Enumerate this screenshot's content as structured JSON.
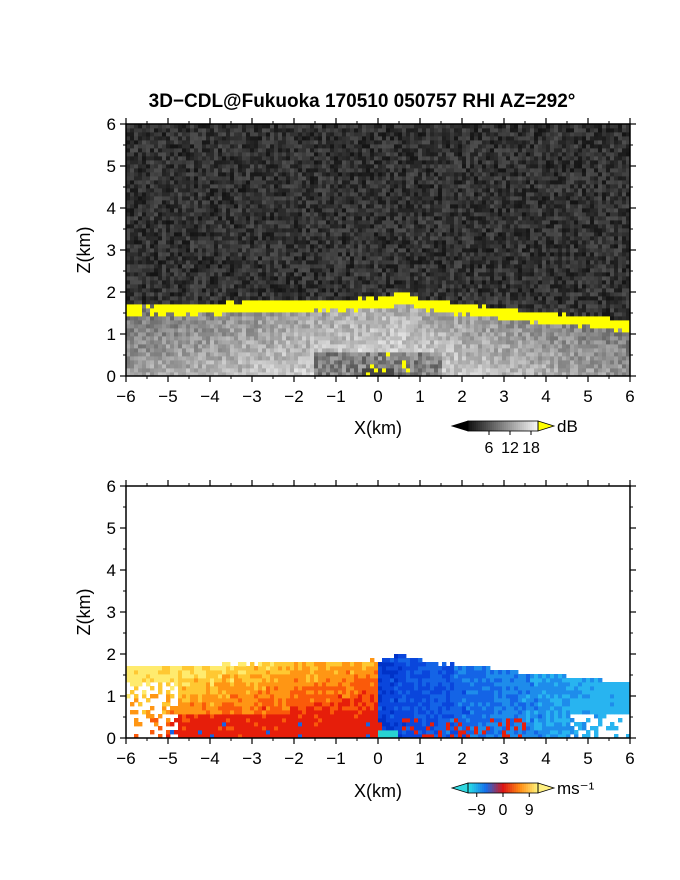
{
  "title": "3D−CDL@Fukuoka 170510 050757 RHI AZ=292°",
  "chart_data": [
    {
      "type": "heatmap",
      "panel": "backscatter",
      "xlabel": "X(km)",
      "ylabel": "Z(km)",
      "xlim": [
        -6,
        6
      ],
      "ylim": [
        0,
        6
      ],
      "xticks": [
        "−6",
        "−5",
        "−4",
        "−3",
        "−2",
        "−1",
        "0",
        "1",
        "2",
        "3",
        "4",
        "5",
        "6"
      ],
      "yticks": [
        "0",
        "1",
        "2",
        "3",
        "4",
        "5",
        "6"
      ],
      "colorbar": {
        "unit": "dB",
        "ticks": [
          "6",
          "12",
          "18"
        ],
        "range": [
          0,
          20
        ]
      },
      "layer_top_km": [
        {
          "x": -6.0,
          "z": 1.72
        },
        {
          "x": -5.0,
          "z": 1.7
        },
        {
          "x": -4.0,
          "z": 1.72
        },
        {
          "x": -3.0,
          "z": 1.78
        },
        {
          "x": -2.0,
          "z": 1.8
        },
        {
          "x": -1.0,
          "z": 1.82
        },
        {
          "x": 0.0,
          "z": 1.85
        },
        {
          "x": 0.6,
          "z": 2.0
        },
        {
          "x": 1.0,
          "z": 1.85
        },
        {
          "x": 2.0,
          "z": 1.72
        },
        {
          "x": 3.0,
          "z": 1.62
        },
        {
          "x": 4.0,
          "z": 1.52
        },
        {
          "x": 5.0,
          "z": 1.42
        },
        {
          "x": 6.0,
          "z": 1.3
        }
      ],
      "layer_base_km": 1.45,
      "strong_layer_thickness_km": 0.25
    },
    {
      "type": "heatmap",
      "panel": "radial-velocity",
      "xlabel": "X(km)",
      "ylabel": "Z(km)",
      "xlim": [
        -6,
        6
      ],
      "ylim": [
        0,
        6
      ],
      "xticks": [
        "−6",
        "−5",
        "−4",
        "−3",
        "−2",
        "−1",
        "0",
        "1",
        "2",
        "3",
        "4",
        "5",
        "6"
      ],
      "yticks": [
        "0",
        "1",
        "2",
        "3",
        "4",
        "5",
        "6"
      ],
      "colorbar": {
        "unit": "ms⁻¹",
        "ticks": [
          "−9",
          "0",
          "9"
        ],
        "range": [
          -12,
          12
        ]
      },
      "velocity_left_side_ms": 9,
      "velocity_right_side_ms": -9
    }
  ]
}
